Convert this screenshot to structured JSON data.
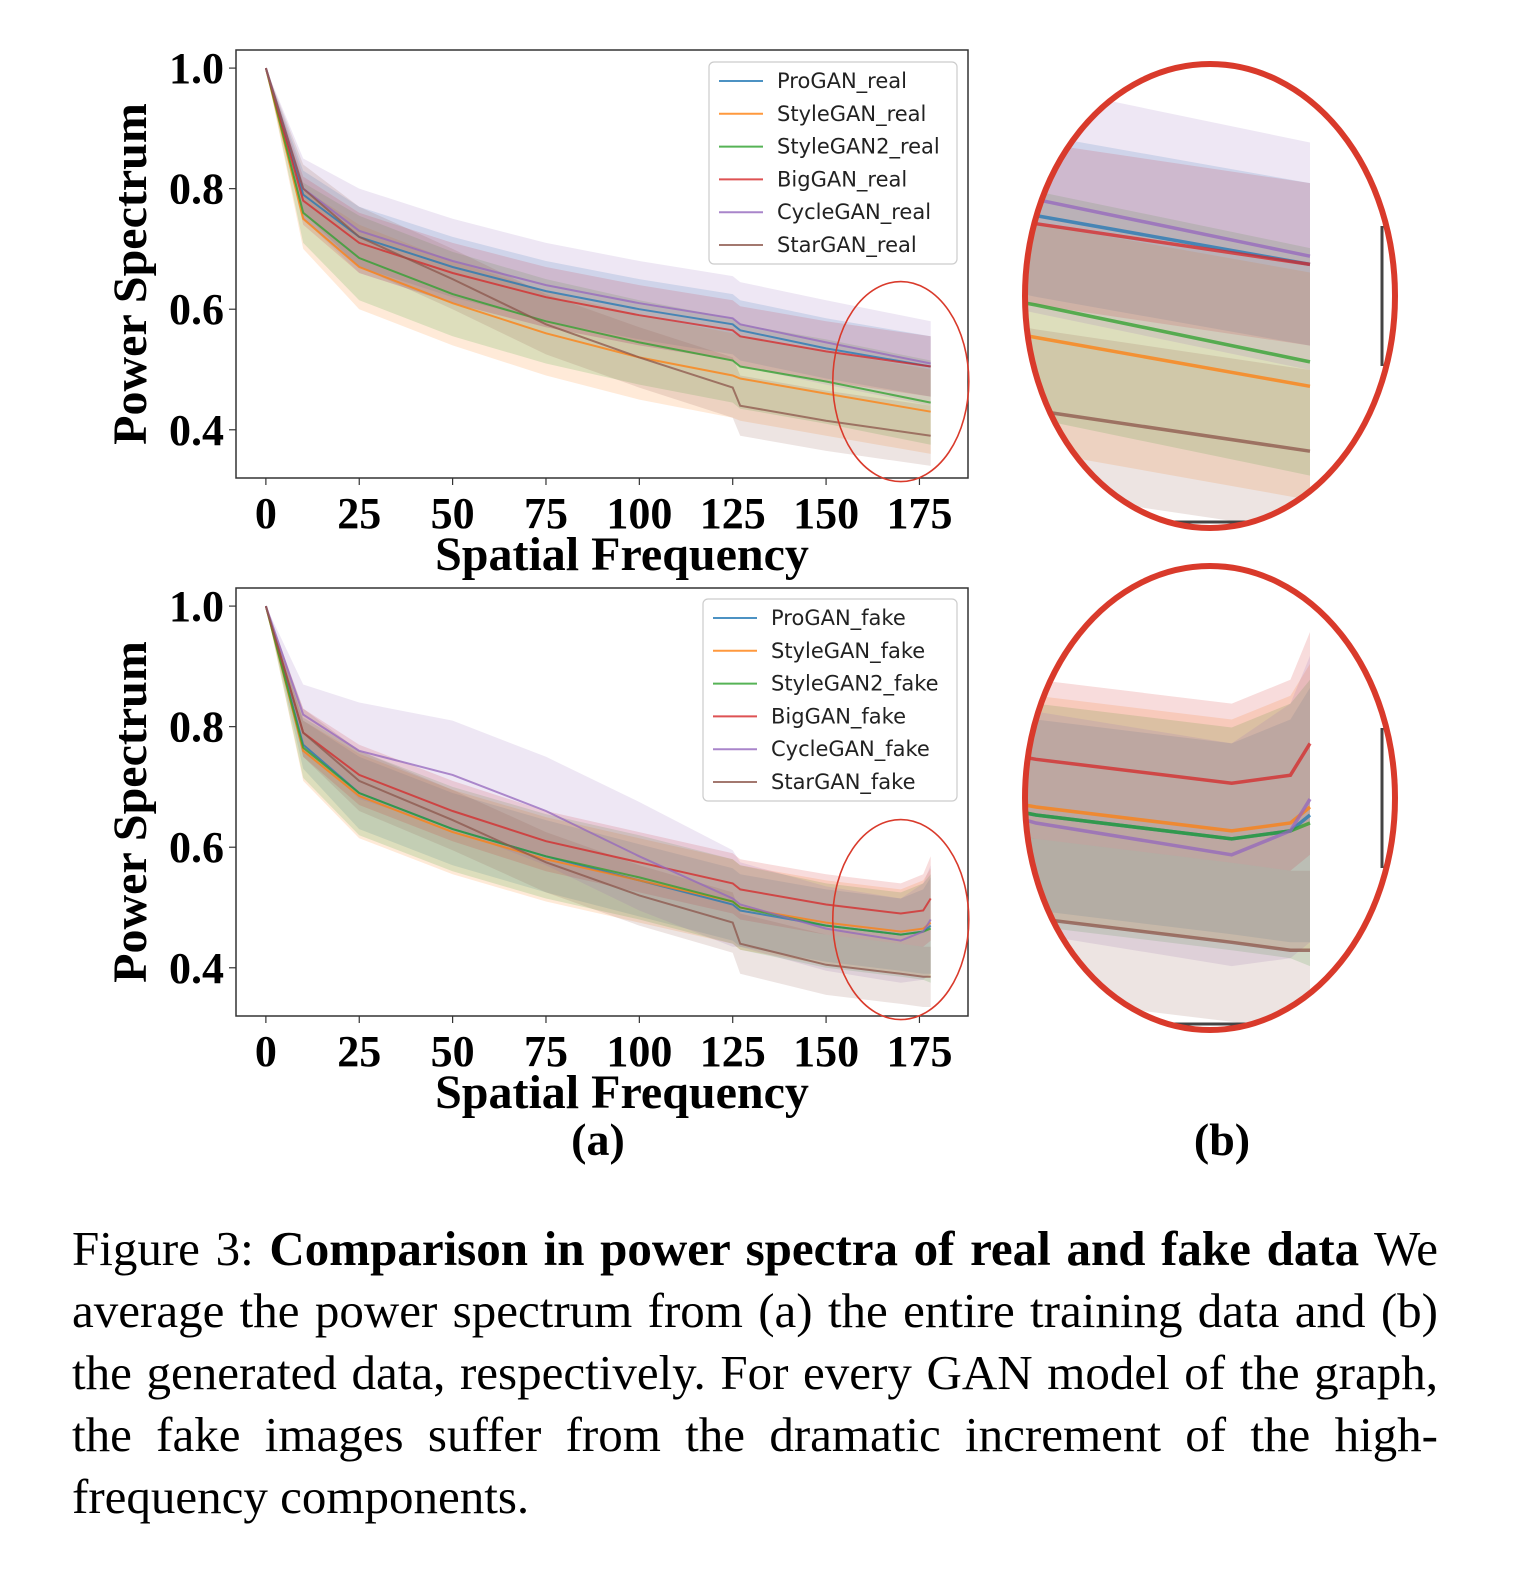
{
  "chart_data": [
    {
      "type": "line",
      "panel": "top",
      "xlabel": "Spatial Frequency",
      "ylabel": "Power Spectrum",
      "xlim": [
        -8,
        188
      ],
      "ylim": [
        0.32,
        1.03
      ],
      "xticks": [
        0,
        25,
        50,
        75,
        100,
        125,
        150,
        175
      ],
      "yticks": [
        0.4,
        0.6,
        0.8,
        1.0
      ],
      "ytick_labels": [
        "0.4",
        "0.6",
        "0.8",
        "1.0"
      ],
      "legend_position": "top-right",
      "x": [
        0,
        10,
        25,
        50,
        75,
        100,
        125,
        127,
        150,
        178
      ],
      "series": [
        {
          "name": "ProGAN_real",
          "color": "#1f77b4",
          "values": [
            1.0,
            0.79,
            0.72,
            0.67,
            0.63,
            0.6,
            0.575,
            0.565,
            0.535,
            0.505
          ],
          "band": [
            0.04,
            0.05,
            0.05,
            0.05,
            0.05,
            0.05,
            0.05,
            0.05,
            0.05
          ]
        },
        {
          "name": "StyleGAN_real",
          "color": "#ff7f0e",
          "values": [
            1.0,
            0.75,
            0.67,
            0.61,
            0.56,
            0.52,
            0.49,
            0.485,
            0.46,
            0.43
          ],
          "band": [
            0.05,
            0.07,
            0.07,
            0.07,
            0.07,
            0.07,
            0.07,
            0.07,
            0.07
          ]
        },
        {
          "name": "StyleGAN2_real",
          "color": "#2ca02c",
          "values": [
            1.0,
            0.76,
            0.685,
            0.625,
            0.58,
            0.545,
            0.515,
            0.505,
            0.48,
            0.445
          ],
          "band": [
            0.05,
            0.07,
            0.07,
            0.07,
            0.07,
            0.07,
            0.07,
            0.07,
            0.07
          ]
        },
        {
          "name": "BigGAN_real",
          "color": "#d62728",
          "values": [
            1.0,
            0.78,
            0.71,
            0.66,
            0.62,
            0.59,
            0.565,
            0.555,
            0.53,
            0.505
          ],
          "band": [
            0.04,
            0.05,
            0.05,
            0.05,
            0.05,
            0.05,
            0.05,
            0.05,
            0.05
          ]
        },
        {
          "name": "CycleGAN_real",
          "color": "#9467bd",
          "values": [
            1.0,
            0.8,
            0.73,
            0.68,
            0.64,
            0.61,
            0.585,
            0.575,
            0.545,
            0.51
          ],
          "band": [
            0.05,
            0.07,
            0.07,
            0.07,
            0.07,
            0.07,
            0.07,
            0.07,
            0.07
          ]
        },
        {
          "name": "StarGAN_real",
          "color": "#8c564b",
          "values": [
            1.0,
            0.8,
            0.72,
            0.65,
            0.575,
            0.52,
            0.47,
            0.44,
            0.415,
            0.39
          ],
          "band": [
            0.04,
            0.05,
            0.05,
            0.05,
            0.05,
            0.05,
            0.05,
            0.05,
            0.05
          ]
        }
      ]
    },
    {
      "type": "line",
      "panel": "bottom",
      "xlabel": "Spatial Frequency",
      "ylabel": "Power Spectrum",
      "xlim": [
        -8,
        188
      ],
      "ylim": [
        0.32,
        1.03
      ],
      "xticks": [
        0,
        25,
        50,
        75,
        100,
        125,
        150,
        175
      ],
      "yticks": [
        0.4,
        0.6,
        0.8,
        1.0
      ],
      "ytick_labels": [
        "0.4",
        "0.6",
        "0.8",
        "1.0"
      ],
      "legend_position": "top-right",
      "x": [
        0,
        10,
        25,
        50,
        75,
        100,
        125,
        127,
        150,
        170,
        176,
        178
      ],
      "series": [
        {
          "name": "ProGAN_fake",
          "color": "#1f77b4",
          "values": [
            1.0,
            0.77,
            0.69,
            0.63,
            0.585,
            0.545,
            0.505,
            0.495,
            0.47,
            0.455,
            0.46,
            0.47
          ],
          "band": [
            0.04,
            0.06,
            0.06,
            0.06,
            0.06,
            0.06,
            0.06,
            0.06,
            0.06,
            0.07,
            0.08
          ]
        },
        {
          "name": "StyleGAN_fake",
          "color": "#ff7f0e",
          "values": [
            1.0,
            0.76,
            0.685,
            0.625,
            0.58,
            0.545,
            0.51,
            0.5,
            0.475,
            0.46,
            0.465,
            0.475
          ],
          "band": [
            0.05,
            0.07,
            0.07,
            0.07,
            0.07,
            0.07,
            0.07,
            0.07,
            0.07,
            0.08,
            0.09
          ]
        },
        {
          "name": "StyleGAN2_fake",
          "color": "#2ca02c",
          "values": [
            1.0,
            0.765,
            0.69,
            0.63,
            0.585,
            0.55,
            0.51,
            0.5,
            0.47,
            0.455,
            0.46,
            0.465
          ],
          "band": [
            0.05,
            0.07,
            0.07,
            0.07,
            0.07,
            0.07,
            0.07,
            0.07,
            0.07,
            0.08,
            0.09
          ]
        },
        {
          "name": "BigGAN_fake",
          "color": "#d62728",
          "values": [
            1.0,
            0.79,
            0.72,
            0.66,
            0.61,
            0.575,
            0.54,
            0.53,
            0.505,
            0.49,
            0.495,
            0.515
          ],
          "band": [
            0.04,
            0.05,
            0.05,
            0.05,
            0.05,
            0.05,
            0.05,
            0.05,
            0.05,
            0.06,
            0.07
          ]
        },
        {
          "name": "CycleGAN_fake",
          "color": "#9467bd",
          "values": [
            1.0,
            0.82,
            0.76,
            0.72,
            0.66,
            0.585,
            0.515,
            0.505,
            0.465,
            0.445,
            0.46,
            0.48
          ],
          "band": [
            0.05,
            0.08,
            0.09,
            0.09,
            0.09,
            0.08,
            0.07,
            0.07,
            0.07,
            0.08,
            0.09
          ]
        },
        {
          "name": "StarGAN_fake",
          "color": "#8c564b",
          "values": [
            1.0,
            0.79,
            0.71,
            0.645,
            0.575,
            0.52,
            0.475,
            0.44,
            0.405,
            0.39,
            0.385,
            0.385
          ],
          "band": [
            0.04,
            0.05,
            0.05,
            0.05,
            0.05,
            0.05,
            0.05,
            0.05,
            0.05,
            0.05,
            0.05
          ]
        }
      ]
    }
  ],
  "panel_labels": {
    "a": "(a)",
    "b": "(b)"
  },
  "caption": {
    "label": "Figure 3:",
    "title": "Comparison in power spectra of real and fake data",
    "text": "We average the power spectrum from (a) the entire training data and (b) the generated data, respectively. For every GAN model of the graph, the fake images suffer from the dramatic increment of the high-frequency components."
  },
  "colors": {
    "highlight": "#d93a2b",
    "axes": "#333333"
  }
}
